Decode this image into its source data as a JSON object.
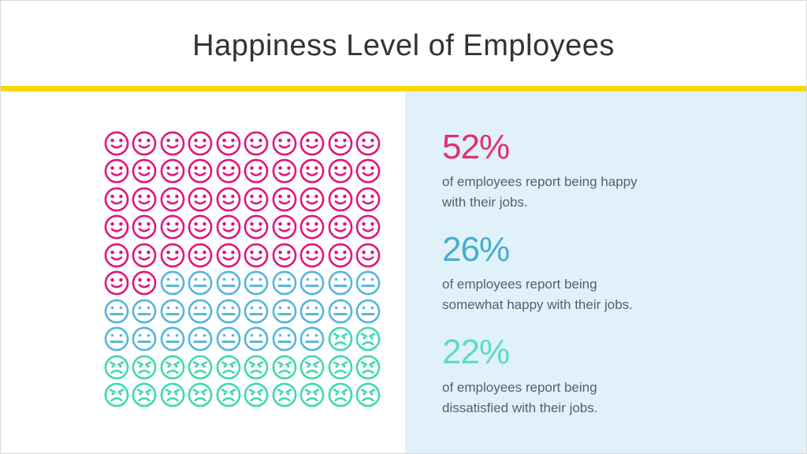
{
  "slide": {
    "title": "Happiness Level of Employees",
    "accent_bar_color": "#f9d608",
    "panel_bg_color": "#e0f1fa"
  },
  "stats": [
    {
      "value": "52%",
      "color": "#e62e72",
      "line1": "of employees report being happy",
      "line2": "with their jobs."
    },
    {
      "value": "26%",
      "color": "#45aece",
      "line1": "of employees report being",
      "line2": "somewhat happy with their jobs."
    },
    {
      "value": "22%",
      "color": "#5edcc2",
      "line1": "of employees report being",
      "line2": "dissatisfied with their jobs."
    }
  ],
  "chart_data": {
    "type": "pictograph",
    "title": "Happiness Level of Employees",
    "grid": {
      "rows": 10,
      "cols": 10,
      "percent_per_icon": 1
    },
    "categories": [
      "happy",
      "somewhat happy",
      "dissatisfied"
    ],
    "values": [
      52,
      26,
      22
    ],
    "series": [
      {
        "name": "happy",
        "value": 52,
        "color": "#e2137c",
        "icon": "happy-face",
        "label": "of employees report being happy with their jobs."
      },
      {
        "name": "somewhat happy",
        "value": 26,
        "color": "#54b6d8",
        "icon": "meh-face",
        "label": "of employees report being somewhat happy with their jobs."
      },
      {
        "name": "dissatisfied",
        "value": 22,
        "color": "#3fd8ae",
        "icon": "angry-face",
        "label": "of employees report being dissatisfied with their jobs."
      }
    ],
    "legend_position": "right",
    "grid_lines": false
  }
}
